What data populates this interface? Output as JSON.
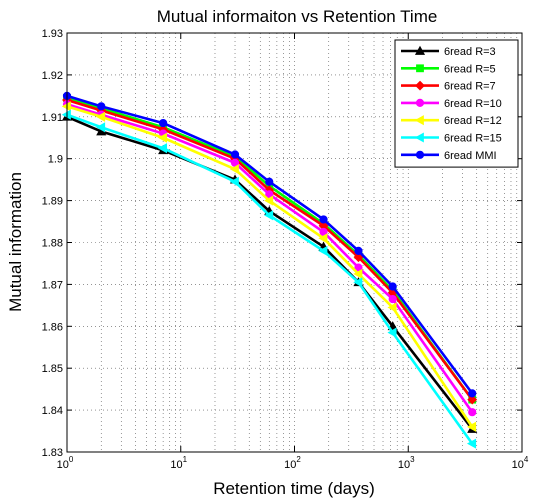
{
  "chart_data": {
    "type": "line",
    "title": "Mutual informaiton vs Retention Time",
    "xlabel": "Retention time (days)",
    "ylabel": "Mutual information",
    "xscale": "log",
    "xlim": [
      1,
      10000
    ],
    "ylim": [
      1.83,
      1.93
    ],
    "grid": true,
    "legend_position": "top-right",
    "x": [
      1,
      2,
      7,
      30,
      60,
      180,
      365,
      730,
      3650
    ],
    "yticks": [
      "1.83",
      "1.84",
      "1.85",
      "1.86",
      "1.87",
      "1.88",
      "1.89",
      "1.9",
      "1.91",
      "1.92",
      "1.93"
    ],
    "xticks": [
      {
        "base": "10",
        "exp": "0"
      },
      {
        "base": "10",
        "exp": "1"
      },
      {
        "base": "10",
        "exp": "2"
      },
      {
        "base": "10",
        "exp": "3"
      },
      {
        "base": "10",
        "exp": "4"
      }
    ],
    "series": [
      {
        "name": "6read R=3",
        "color": "#000000",
        "marker": "triangle-up",
        "values": [
          1.91,
          1.9065,
          1.902,
          1.895,
          1.8875,
          1.879,
          1.8705,
          1.86,
          1.8355
        ]
      },
      {
        "name": "6read R=5",
        "color": "#00ff00",
        "marker": "square",
        "values": [
          1.9145,
          1.912,
          1.9075,
          1.9005,
          1.8935,
          1.8845,
          1.877,
          1.8685,
          1.8425
        ]
      },
      {
        "name": "6read R=7",
        "color": "#ff0000",
        "marker": "diamond",
        "values": [
          1.914,
          1.9115,
          1.907,
          1.9,
          1.8925,
          1.884,
          1.8765,
          1.868,
          1.8425
        ]
      },
      {
        "name": "6read R=10",
        "color": "#ff00ff",
        "marker": "circle",
        "values": [
          1.913,
          1.9105,
          1.906,
          1.899,
          1.8915,
          1.8825,
          1.874,
          1.8665,
          1.8395
        ]
      },
      {
        "name": "6read R=12",
        "color": "#ffff00",
        "marker": "triangle-left",
        "values": [
          1.9125,
          1.91,
          1.905,
          1.8975,
          1.89,
          1.881,
          1.8725,
          1.8645,
          1.836
        ]
      },
      {
        "name": "6read R=15",
        "color": "#00ffff",
        "marker": "triangle-left",
        "values": [
          1.9105,
          1.9075,
          1.9025,
          1.8945,
          1.8865,
          1.878,
          1.8705,
          1.8585,
          1.832
        ]
      },
      {
        "name": "6read MMI",
        "color": "#0000ff",
        "marker": "circle",
        "values": [
          1.915,
          1.9125,
          1.9085,
          1.901,
          1.8945,
          1.8855,
          1.878,
          1.8695,
          1.844
        ]
      }
    ]
  }
}
